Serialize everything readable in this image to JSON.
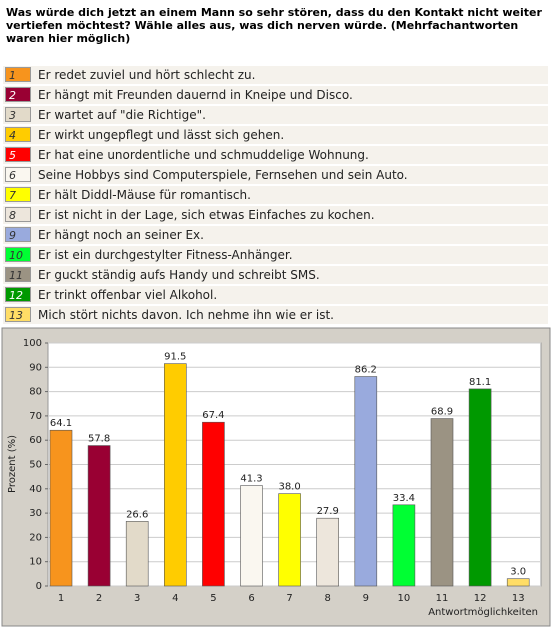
{
  "question": "Was würde dich jetzt an einem Mann so sehr stören, dass du den Kontakt nicht weiter vertiefen möchtest? Wähle alles aus, was dich nerven würde. (Mehrfachantworten waren hier möglich)",
  "options": [
    {
      "number": "1",
      "text": "Er redet zuviel und hört schlecht zu."
    },
    {
      "number": "2",
      "text": "Er hängt mit Freunden dauernd in Kneipe und Disco."
    },
    {
      "number": "3",
      "text": "Er wartet auf \"die Richtige\"."
    },
    {
      "number": "4",
      "text": "Er wirkt ungepflegt und lässt sich gehen."
    },
    {
      "number": "5",
      "text": "Er hat eine unordentliche und schmuddelige Wohnung."
    },
    {
      "number": "6",
      "text": "Seine Hobbys sind Computerspiele, Fernsehen und sein Auto."
    },
    {
      "number": "7",
      "text": "Er hält Diddl-Mäuse für romantisch."
    },
    {
      "number": "8",
      "text": "Er ist nicht in der Lage, sich etwas Einfaches zu kochen."
    },
    {
      "number": "9",
      "text": "Er hängt noch an seiner Ex."
    },
    {
      "number": "10",
      "text": "Er ist ein durchgestylter Fitness-Anhänger."
    },
    {
      "number": "11",
      "text": "Er guckt ständig aufs Handy und schreibt SMS."
    },
    {
      "number": "12",
      "text": "Er trinkt offenbar viel Alkohol."
    },
    {
      "number": "13",
      "text": "Mich stört nichts davon. Ich nehme ihn wie er ist."
    }
  ],
  "chart_data": {
    "type": "bar",
    "x_label": "Antwortmöglichkeiten",
    "y_label": "Prozent (%)",
    "categories": [
      1,
      2,
      3,
      4,
      5,
      6,
      7,
      8,
      9,
      10,
      11,
      12,
      13
    ],
    "values": [
      64.1,
      57.8,
      26.6,
      91.5,
      67.4,
      41.3,
      38.0,
      27.9,
      86.2,
      33.4,
      68.9,
      81.1,
      3.0
    ],
    "value_labels": [
      "64.1",
      "57.8",
      "26.6",
      "91.5",
      "67.4",
      "41.3",
      "38.0",
      "27.9",
      "86.2",
      "33.4",
      "68.9",
      "81.1",
      "3.0"
    ],
    "colors": [
      "#f7941d",
      "#990033",
      "#e2dac9",
      "#ffcc00",
      "#ff0000",
      "#faf7f0",
      "#ffff00",
      "#ede6dc",
      "#99aadd",
      "#00ff33",
      "#9b9383",
      "#009900",
      "#ffdd66"
    ],
    "ylim": [
      0,
      100
    ],
    "yticks": [
      0,
      10,
      20,
      30,
      40,
      50,
      60,
      70,
      80,
      90,
      100
    ],
    "grid": true
  }
}
